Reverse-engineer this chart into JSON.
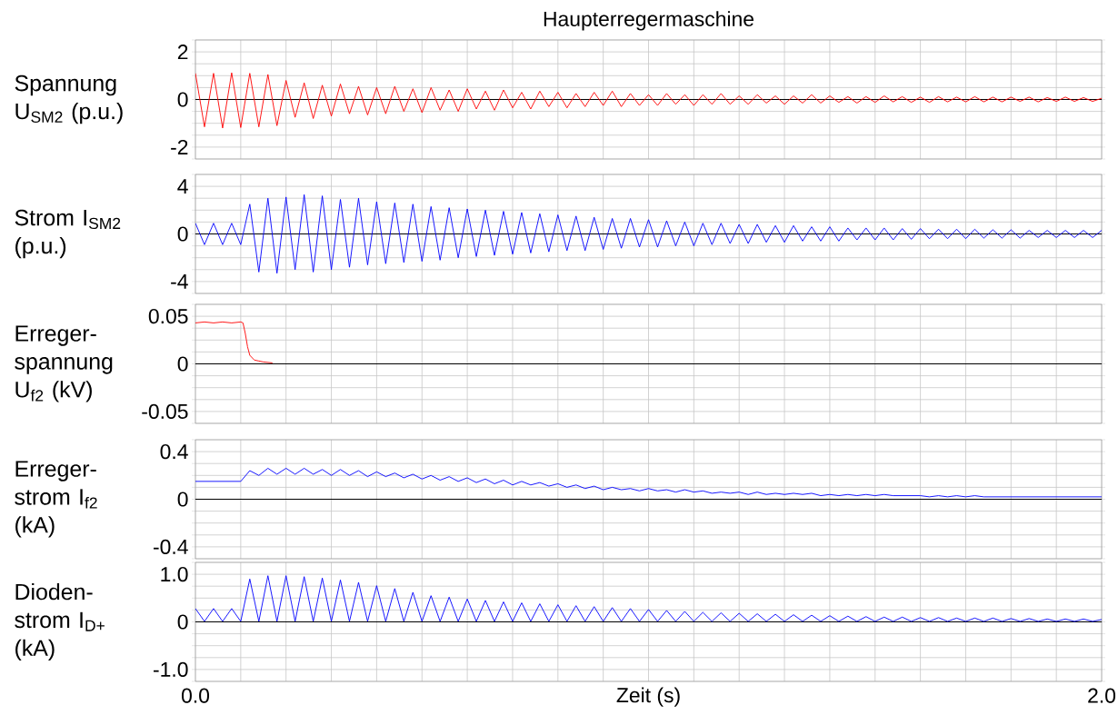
{
  "chart_data": [
    {
      "type": "line",
      "title": "Haupterregermaschine",
      "ylabel": "Spannung U$_{SM2}$ (p.u.)",
      "grid": true,
      "tick_labels": "y",
      "xlim": [
        0,
        2
      ],
      "ylim": [
        -2.5,
        2.5
      ],
      "xticks": [
        {
          "value": 0,
          "label": null
        },
        {
          "value": 0.1,
          "label": null
        },
        {
          "value": 0.2,
          "label": null
        },
        {
          "value": 0.3,
          "label": null
        },
        {
          "value": 0.4,
          "label": null
        },
        {
          "value": 0.5,
          "label": null
        },
        {
          "value": 0.6,
          "label": null
        },
        {
          "value": 0.7,
          "label": null
        },
        {
          "value": 0.8,
          "label": null
        },
        {
          "value": 0.9,
          "label": null
        },
        {
          "value": 1,
          "label": null
        },
        {
          "value": 1.1,
          "label": null
        },
        {
          "value": 1.2,
          "label": null
        },
        {
          "value": 1.3,
          "label": null
        },
        {
          "value": 1.4,
          "label": null
        },
        {
          "value": 1.5,
          "label": null
        },
        {
          "value": 1.6,
          "label": null
        },
        {
          "value": 1.7,
          "label": null
        },
        {
          "value": 1.8,
          "label": null
        },
        {
          "value": 1.9,
          "label": null
        },
        {
          "value": 2,
          "label": null
        }
      ],
      "yticks": [
        {
          "value": -2.5,
          "label": null
        },
        -2,
        {
          "value": -1.5,
          "label": null
        },
        {
          "value": -1,
          "label": null
        },
        {
          "value": -0.5,
          "label": null
        },
        0,
        {
          "value": 0.5,
          "label": null
        },
        {
          "value": 1,
          "label": null
        },
        {
          "value": 1.5,
          "label": null
        },
        2,
        {
          "value": 2.5,
          "label": null
        }
      ],
      "ref_lines": [
        {
          "axis": "y",
          "value": 0,
          "color": "#000000"
        }
      ],
      "x": [
        0,
        0.02,
        0.04,
        0.06,
        0.08,
        0.1,
        0.12,
        0.14,
        0.16,
        0.18,
        0.2,
        0.22,
        0.24,
        0.26,
        0.28,
        0.3,
        0.32,
        0.34,
        0.36,
        0.38,
        0.4,
        0.42,
        0.44,
        0.46,
        0.48,
        0.5,
        0.52,
        0.54,
        0.56,
        0.58,
        0.6,
        0.62,
        0.64,
        0.66,
        0.68,
        0.7,
        0.72,
        0.74,
        0.76,
        0.78,
        0.8,
        0.82,
        0.84,
        0.86,
        0.88,
        0.9,
        0.92,
        0.94,
        0.96,
        0.98,
        1,
        1.02,
        1.04,
        1.06,
        1.08,
        1.1,
        1.12,
        1.14,
        1.16,
        1.18,
        1.2,
        1.22,
        1.24,
        1.26,
        1.28,
        1.3,
        1.32,
        1.34,
        1.36,
        1.38,
        1.4,
        1.42,
        1.44,
        1.46,
        1.48,
        1.5,
        1.52,
        1.54,
        1.56,
        1.58,
        1.6,
        1.62,
        1.64,
        1.66,
        1.68,
        1.7,
        1.72,
        1.74,
        1.76,
        1.78,
        1.8,
        1.82,
        1.84,
        1.86,
        1.88,
        1.9,
        1.92,
        1.94,
        1.96,
        1.98,
        2
      ],
      "series": [
        {
          "color": "#ff0000",
          "values": [
            1.1,
            -1.15,
            1.1,
            -1.2,
            1.12,
            -1.18,
            1.1,
            -1.15,
            1.05,
            -1.1,
            0.8,
            -0.75,
            0.7,
            -0.8,
            0.6,
            -0.7,
            0.65,
            -0.6,
            0.55,
            -0.65,
            0.5,
            -0.6,
            0.55,
            -0.5,
            0.45,
            -0.55,
            0.5,
            -0.45,
            0.4,
            -0.5,
            0.45,
            -0.4,
            0.35,
            -0.45,
            0.4,
            -0.35,
            0.3,
            -0.4,
            0.35,
            -0.3,
            0.3,
            -0.35,
            0.25,
            -0.3,
            0.3,
            -0.25,
            0.35,
            -0.3,
            0.25,
            -0.25,
            0.2,
            -0.25,
            0.25,
            -0.2,
            0.2,
            -0.25,
            0.2,
            -0.2,
            0.25,
            -0.2,
            0.15,
            -0.2,
            0.2,
            -0.15,
            0.15,
            -0.2,
            0.15,
            -0.15,
            0.2,
            -0.15,
            0.15,
            -0.12,
            0.12,
            -0.15,
            0.12,
            -0.12,
            0.15,
            -0.1,
            0.12,
            -0.12,
            0.1,
            -0.12,
            0.12,
            -0.1,
            0.1,
            -0.1,
            0.12,
            -0.1,
            0.1,
            -0.1,
            0.1,
            -0.08,
            0.1,
            -0.1,
            0.08,
            -0.08,
            0.1,
            -0.08,
            0.08,
            -0.08,
            0.05
          ]
        }
      ]
    },
    {
      "type": "line",
      "ylabel": "Strom I$_{SM2}$ (p.u.)",
      "grid": true,
      "tick_labels": "y",
      "xlim": [
        0,
        2
      ],
      "ylim": [
        -5,
        5
      ],
      "xticks": [
        {
          "value": 0,
          "label": null
        },
        {
          "value": 0.1,
          "label": null
        },
        {
          "value": 0.2,
          "label": null
        },
        {
          "value": 0.3,
          "label": null
        },
        {
          "value": 0.4,
          "label": null
        },
        {
          "value": 0.5,
          "label": null
        },
        {
          "value": 0.6,
          "label": null
        },
        {
          "value": 0.7,
          "label": null
        },
        {
          "value": 0.8,
          "label": null
        },
        {
          "value": 0.9,
          "label": null
        },
        {
          "value": 1,
          "label": null
        },
        {
          "value": 1.1,
          "label": null
        },
        {
          "value": 1.2,
          "label": null
        },
        {
          "value": 1.3,
          "label": null
        },
        {
          "value": 1.4,
          "label": null
        },
        {
          "value": 1.5,
          "label": null
        },
        {
          "value": 1.6,
          "label": null
        },
        {
          "value": 1.7,
          "label": null
        },
        {
          "value": 1.8,
          "label": null
        },
        {
          "value": 1.9,
          "label": null
        },
        {
          "value": 2,
          "label": null
        }
      ],
      "yticks": [
        {
          "value": -5,
          "label": null
        },
        -4,
        {
          "value": -3,
          "label": null
        },
        {
          "value": -2,
          "label": null
        },
        {
          "value": -1,
          "label": null
        },
        0,
        {
          "value": 1,
          "label": null
        },
        {
          "value": 2,
          "label": null
        },
        {
          "value": 3,
          "label": null
        },
        4,
        {
          "value": 5,
          "label": null
        }
      ],
      "ref_lines": [
        {
          "axis": "y",
          "value": 0,
          "color": "#000000"
        }
      ],
      "x": [
        0,
        0.02,
        0.04,
        0.06,
        0.08,
        0.1,
        0.12,
        0.14,
        0.16,
        0.18,
        0.2,
        0.22,
        0.24,
        0.26,
        0.28,
        0.3,
        0.32,
        0.34,
        0.36,
        0.38,
        0.4,
        0.42,
        0.44,
        0.46,
        0.48,
        0.5,
        0.52,
        0.54,
        0.56,
        0.58,
        0.6,
        0.62,
        0.64,
        0.66,
        0.68,
        0.7,
        0.72,
        0.74,
        0.76,
        0.78,
        0.8,
        0.82,
        0.84,
        0.86,
        0.88,
        0.9,
        0.92,
        0.94,
        0.96,
        0.98,
        1,
        1.02,
        1.04,
        1.06,
        1.08,
        1.1,
        1.12,
        1.14,
        1.16,
        1.18,
        1.2,
        1.22,
        1.24,
        1.26,
        1.28,
        1.3,
        1.32,
        1.34,
        1.36,
        1.38,
        1.4,
        1.42,
        1.44,
        1.46,
        1.48,
        1.5,
        1.52,
        1.54,
        1.56,
        1.58,
        1.6,
        1.62,
        1.64,
        1.66,
        1.68,
        1.7,
        1.72,
        1.74,
        1.76,
        1.78,
        1.8,
        1.82,
        1.84,
        1.86,
        1.88,
        1.9,
        1.92,
        1.94,
        1.96,
        1.98,
        2
      ],
      "series": [
        {
          "color": "#0000ff",
          "values": [
            0.9,
            -0.9,
            0.9,
            -0.9,
            0.9,
            -0.9,
            2.5,
            -3.2,
            3.0,
            -3.3,
            3.1,
            -3.0,
            3.3,
            -3.2,
            3.2,
            -3.0,
            2.9,
            -2.8,
            3.0,
            -2.6,
            2.7,
            -2.5,
            2.6,
            -2.4,
            2.5,
            -2.3,
            2.3,
            -2.2,
            2.2,
            -2.0,
            2.1,
            -1.9,
            2.0,
            -1.8,
            1.9,
            -1.7,
            1.8,
            -1.6,
            1.7,
            -1.5,
            1.6,
            -1.4,
            1.5,
            -1.4,
            1.4,
            -1.3,
            1.3,
            -1.2,
            1.3,
            -1.1,
            1.2,
            -1.1,
            1.1,
            -1.0,
            1.0,
            -1.0,
            0.9,
            -0.9,
            0.9,
            -0.8,
            0.8,
            -0.8,
            0.8,
            -0.7,
            0.7,
            -0.7,
            0.7,
            -0.6,
            0.6,
            -0.6,
            0.6,
            -0.6,
            0.5,
            -0.5,
            0.5,
            -0.5,
            0.5,
            -0.5,
            0.45,
            -0.45,
            0.45,
            -0.4,
            0.4,
            -0.4,
            0.4,
            -0.4,
            0.4,
            -0.35,
            0.35,
            -0.35,
            0.35,
            -0.35,
            0.3,
            -0.3,
            0.3,
            -0.3,
            0.3,
            -0.3,
            0.3,
            -0.3,
            0.3
          ]
        }
      ]
    },
    {
      "type": "line",
      "ylabel": "Erreger-spannung U$_{f2}$ (kV)",
      "grid": true,
      "tick_labels": "y",
      "xlim": [
        0,
        2
      ],
      "ylim": [
        -0.0625,
        0.0625
      ],
      "xticks": [
        {
          "value": 0,
          "label": null
        },
        {
          "value": 0.1,
          "label": null
        },
        {
          "value": 0.2,
          "label": null
        },
        {
          "value": 0.3,
          "label": null
        },
        {
          "value": 0.4,
          "label": null
        },
        {
          "value": 0.5,
          "label": null
        },
        {
          "value": 0.6,
          "label": null
        },
        {
          "value": 0.7,
          "label": null
        },
        {
          "value": 0.8,
          "label": null
        },
        {
          "value": 0.9,
          "label": null
        },
        {
          "value": 1,
          "label": null
        },
        {
          "value": 1.1,
          "label": null
        },
        {
          "value": 1.2,
          "label": null
        },
        {
          "value": 1.3,
          "label": null
        },
        {
          "value": 1.4,
          "label": null
        },
        {
          "value": 1.5,
          "label": null
        },
        {
          "value": 1.6,
          "label": null
        },
        {
          "value": 1.7,
          "label": null
        },
        {
          "value": 1.8,
          "label": null
        },
        {
          "value": 1.9,
          "label": null
        },
        {
          "value": 2,
          "label": null
        }
      ],
      "yticks": [
        {
          "value": -0.0625,
          "label": null
        },
        -0.05,
        {
          "value": -0.0375,
          "label": null
        },
        {
          "value": -0.025,
          "label": null
        },
        {
          "value": -0.0125,
          "label": null
        },
        0,
        {
          "value": 0.0125,
          "label": null
        },
        {
          "value": 0.025,
          "label": null
        },
        {
          "value": 0.0375,
          "label": null
        },
        0.05,
        {
          "value": 0.0625,
          "label": null
        }
      ],
      "ref_lines": [
        {
          "axis": "y",
          "value": 0,
          "color": "#000000"
        }
      ],
      "x": [
        0,
        0.02,
        0.04,
        0.06,
        0.08,
        0.1,
        0.105,
        0.11,
        0.115,
        0.12,
        0.13,
        0.14,
        0.15,
        0.17
      ],
      "series": [
        {
          "color": "#ff0000",
          "values": [
            0.043,
            0.044,
            0.043,
            0.044,
            0.043,
            0.044,
            0.043,
            0.032,
            0.018,
            0.009,
            0.004,
            0.003,
            0.002,
            0.001
          ]
        }
      ]
    },
    {
      "type": "line",
      "ylabel": "Erreger-strom I$_{f2}$ (kA)",
      "grid": true,
      "tick_labels": "y",
      "xlim": [
        0,
        2
      ],
      "ylim": [
        -0.5,
        0.5
      ],
      "xticks": [
        {
          "value": 0,
          "label": null
        },
        {
          "value": 0.1,
          "label": null
        },
        {
          "value": 0.2,
          "label": null
        },
        {
          "value": 0.3,
          "label": null
        },
        {
          "value": 0.4,
          "label": null
        },
        {
          "value": 0.5,
          "label": null
        },
        {
          "value": 0.6,
          "label": null
        },
        {
          "value": 0.7,
          "label": null
        },
        {
          "value": 0.8,
          "label": null
        },
        {
          "value": 0.9,
          "label": null
        },
        {
          "value": 1,
          "label": null
        },
        {
          "value": 1.1,
          "label": null
        },
        {
          "value": 1.2,
          "label": null
        },
        {
          "value": 1.3,
          "label": null
        },
        {
          "value": 1.4,
          "label": null
        },
        {
          "value": 1.5,
          "label": null
        },
        {
          "value": 1.6,
          "label": null
        },
        {
          "value": 1.7,
          "label": null
        },
        {
          "value": 1.8,
          "label": null
        },
        {
          "value": 1.9,
          "label": null
        },
        {
          "value": 2,
          "label": null
        }
      ],
      "yticks": [
        {
          "value": -0.5,
          "label": null
        },
        -0.4,
        {
          "value": -0.3,
          "label": null
        },
        {
          "value": -0.2,
          "label": null
        },
        {
          "value": -0.1,
          "label": null
        },
        0,
        {
          "value": 0.1,
          "label": null
        },
        {
          "value": 0.2,
          "label": null
        },
        {
          "value": 0.3,
          "label": null
        },
        0.4,
        {
          "value": 0.5,
          "label": null
        }
      ],
      "ref_lines": [
        {
          "axis": "y",
          "value": 0,
          "color": "#000000"
        }
      ],
      "x": [
        0,
        0.02,
        0.04,
        0.06,
        0.08,
        0.1,
        0.12,
        0.14,
        0.16,
        0.18,
        0.2,
        0.22,
        0.24,
        0.26,
        0.28,
        0.3,
        0.32,
        0.34,
        0.36,
        0.38,
        0.4,
        0.42,
        0.44,
        0.46,
        0.48,
        0.5,
        0.52,
        0.54,
        0.56,
        0.58,
        0.6,
        0.62,
        0.64,
        0.66,
        0.68,
        0.7,
        0.72,
        0.74,
        0.76,
        0.78,
        0.8,
        0.82,
        0.84,
        0.86,
        0.88,
        0.9,
        0.92,
        0.94,
        0.96,
        0.98,
        1,
        1.02,
        1.04,
        1.06,
        1.08,
        1.1,
        1.12,
        1.14,
        1.16,
        1.18,
        1.2,
        1.22,
        1.24,
        1.26,
        1.28,
        1.3,
        1.32,
        1.34,
        1.36,
        1.38,
        1.4,
        1.42,
        1.44,
        1.46,
        1.48,
        1.5,
        1.52,
        1.54,
        1.56,
        1.58,
        1.6,
        1.62,
        1.64,
        1.66,
        1.68,
        1.7,
        1.72,
        1.74,
        1.76,
        1.78,
        1.8,
        1.82,
        1.84,
        1.86,
        1.88,
        1.9,
        1.92,
        1.94,
        1.96,
        1.98,
        2
      ],
      "series": [
        {
          "color": "#0000ff",
          "values": [
            0.15,
            0.15,
            0.15,
            0.15,
            0.15,
            0.15,
            0.24,
            0.2,
            0.26,
            0.21,
            0.26,
            0.21,
            0.26,
            0.21,
            0.25,
            0.2,
            0.25,
            0.2,
            0.24,
            0.19,
            0.23,
            0.19,
            0.22,
            0.18,
            0.21,
            0.17,
            0.2,
            0.16,
            0.19,
            0.15,
            0.18,
            0.14,
            0.17,
            0.13,
            0.16,
            0.12,
            0.15,
            0.12,
            0.14,
            0.11,
            0.13,
            0.1,
            0.12,
            0.09,
            0.11,
            0.08,
            0.1,
            0.08,
            0.09,
            0.07,
            0.09,
            0.07,
            0.08,
            0.06,
            0.08,
            0.06,
            0.07,
            0.05,
            0.06,
            0.05,
            0.06,
            0.04,
            0.06,
            0.04,
            0.05,
            0.04,
            0.05,
            0.04,
            0.05,
            0.03,
            0.04,
            0.03,
            0.04,
            0.03,
            0.04,
            0.03,
            0.04,
            0.03,
            0.03,
            0.03,
            0.03,
            0.02,
            0.03,
            0.02,
            0.03,
            0.02,
            0.03,
            0.02,
            0.02,
            0.02,
            0.02,
            0.02,
            0.02,
            0.02,
            0.02,
            0.02,
            0.02,
            0.02,
            0.02,
            0.02,
            0.02
          ]
        }
      ]
    },
    {
      "type": "line",
      "ylabel": "Dioden-strom I$_{D+}$ (kA)",
      "xlabel": "Zeit (s)",
      "grid": true,
      "xlim": [
        0,
        2
      ],
      "ylim": [
        -1.25,
        1.25
      ],
      "xticks": [
        {
          "value": 0,
          "label": "0.0"
        },
        {
          "value": 0.1,
          "label": null
        },
        {
          "value": 0.2,
          "label": null
        },
        {
          "value": 0.3,
          "label": null
        },
        {
          "value": 0.4,
          "label": null
        },
        {
          "value": 0.5,
          "label": null
        },
        {
          "value": 0.6,
          "label": null
        },
        {
          "value": 0.7,
          "label": null
        },
        {
          "value": 0.8,
          "label": null
        },
        {
          "value": 0.9,
          "label": null
        },
        {
          "value": 1,
          "label": null
        },
        {
          "value": 1.1,
          "label": null
        },
        {
          "value": 1.2,
          "label": null
        },
        {
          "value": 1.3,
          "label": null
        },
        {
          "value": 1.4,
          "label": null
        },
        {
          "value": 1.5,
          "label": null
        },
        {
          "value": 1.6,
          "label": null
        },
        {
          "value": 1.7,
          "label": null
        },
        {
          "value": 1.8,
          "label": null
        },
        {
          "value": 1.9,
          "label": null
        },
        {
          "value": 2,
          "label": "2.0"
        }
      ],
      "yticks": [
        {
          "value": -1.25,
          "label": null
        },
        {
          "value": -1,
          "label": "-1.0"
        },
        {
          "value": -0.75,
          "label": null
        },
        {
          "value": -0.5,
          "label": null
        },
        {
          "value": -0.25,
          "label": null
        },
        0,
        {
          "value": 0.25,
          "label": null
        },
        {
          "value": 0.5,
          "label": null
        },
        {
          "value": 0.75,
          "label": null
        },
        {
          "value": 1,
          "label": "1.0"
        },
        {
          "value": 1.25,
          "label": null
        }
      ],
      "ref_lines": [
        {
          "axis": "y",
          "value": 0,
          "color": "#000000"
        }
      ],
      "x": [
        0,
        0.02,
        0.04,
        0.06,
        0.08,
        0.1,
        0.12,
        0.14,
        0.16,
        0.18,
        0.2,
        0.22,
        0.24,
        0.26,
        0.28,
        0.3,
        0.32,
        0.34,
        0.36,
        0.38,
        0.4,
        0.42,
        0.44,
        0.46,
        0.48,
        0.5,
        0.52,
        0.54,
        0.56,
        0.58,
        0.6,
        0.62,
        0.64,
        0.66,
        0.68,
        0.7,
        0.72,
        0.74,
        0.76,
        0.78,
        0.8,
        0.82,
        0.84,
        0.86,
        0.88,
        0.9,
        0.92,
        0.94,
        0.96,
        0.98,
        1,
        1.02,
        1.04,
        1.06,
        1.08,
        1.1,
        1.12,
        1.14,
        1.16,
        1.18,
        1.2,
        1.22,
        1.24,
        1.26,
        1.28,
        1.3,
        1.32,
        1.34,
        1.36,
        1.38,
        1.4,
        1.42,
        1.44,
        1.46,
        1.48,
        1.5,
        1.52,
        1.54,
        1.56,
        1.58,
        1.6,
        1.62,
        1.64,
        1.66,
        1.68,
        1.7,
        1.72,
        1.74,
        1.76,
        1.78,
        1.8,
        1.82,
        1.84,
        1.86,
        1.88,
        1.9,
        1.92,
        1.94,
        1.96,
        1.98,
        2
      ],
      "series": [
        {
          "color": "#0000ff",
          "values": [
            0.28,
            0.01,
            0.28,
            0.01,
            0.28,
            0.01,
            0.9,
            0.01,
            0.97,
            0.01,
            0.97,
            0.01,
            0.95,
            0.01,
            0.92,
            0.01,
            0.88,
            0.01,
            0.83,
            0.01,
            0.76,
            0.01,
            0.7,
            0.01,
            0.62,
            0.01,
            0.55,
            0.01,
            0.52,
            0.01,
            0.48,
            0.01,
            0.45,
            0.01,
            0.42,
            0.01,
            0.4,
            0.01,
            0.38,
            0.01,
            0.36,
            0.01,
            0.34,
            0.01,
            0.32,
            0.01,
            0.3,
            0.01,
            0.28,
            0.01,
            0.26,
            0.01,
            0.24,
            0.01,
            0.22,
            0.01,
            0.2,
            0.01,
            0.19,
            0.01,
            0.18,
            0.01,
            0.17,
            0.01,
            0.16,
            0.01,
            0.15,
            0.01,
            0.14,
            0.01,
            0.13,
            0.01,
            0.12,
            0.01,
            0.11,
            0.01,
            0.1,
            0.01,
            0.1,
            0.01,
            0.09,
            0.01,
            0.09,
            0.01,
            0.08,
            0.01,
            0.08,
            0.01,
            0.08,
            0.01,
            0.07,
            0.01,
            0.07,
            0.01,
            0.06,
            0.01,
            0.06,
            0.01,
            0.06,
            0.01,
            0.05
          ]
        }
      ]
    }
  ]
}
